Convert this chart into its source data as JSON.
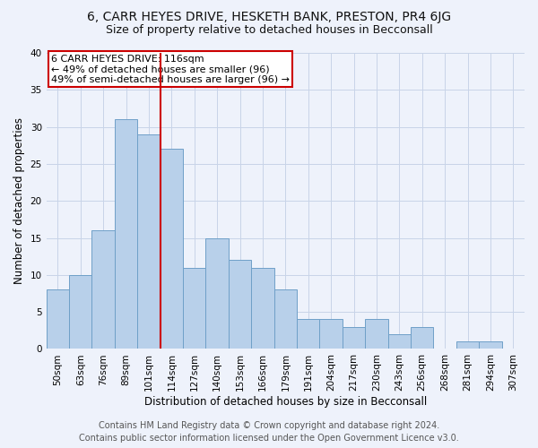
{
  "title": "6, CARR HEYES DRIVE, HESKETH BANK, PRESTON, PR4 6JG",
  "subtitle": "Size of property relative to detached houses in Becconsall",
  "xlabel": "Distribution of detached houses by size in Becconsall",
  "ylabel": "Number of detached properties",
  "categories": [
    "50sqm",
    "63sqm",
    "76sqm",
    "89sqm",
    "101sqm",
    "114sqm",
    "127sqm",
    "140sqm",
    "153sqm",
    "166sqm",
    "179sqm",
    "191sqm",
    "204sqm",
    "217sqm",
    "230sqm",
    "243sqm",
    "256sqm",
    "268sqm",
    "281sqm",
    "294sqm",
    "307sqm"
  ],
  "values": [
    8,
    10,
    16,
    31,
    29,
    27,
    11,
    15,
    12,
    11,
    8,
    4,
    4,
    3,
    4,
    2,
    3,
    0,
    1,
    1,
    0
  ],
  "bar_color": "#b8d0ea",
  "bar_edge_color": "#6fa0c8",
  "vline_color": "#cc0000",
  "annotation_text": "6 CARR HEYES DRIVE: 116sqm\n← 49% of detached houses are smaller (96)\n49% of semi-detached houses are larger (96) →",
  "annotation_box_color": "#ffffff",
  "annotation_box_edge": "#cc0000",
  "ylim": [
    0,
    40
  ],
  "yticks": [
    0,
    5,
    10,
    15,
    20,
    25,
    30,
    35,
    40
  ],
  "grid_color": "#c8d4e8",
  "background_color": "#eef2fb",
  "footer1": "Contains HM Land Registry data © Crown copyright and database right 2024.",
  "footer2": "Contains public sector information licensed under the Open Government Licence v3.0.",
  "title_fontsize": 10,
  "subtitle_fontsize": 9,
  "axis_label_fontsize": 8.5,
  "tick_fontsize": 7.5,
  "footer_fontsize": 7,
  "annotation_fontsize": 8,
  "vline_x_index": 5
}
